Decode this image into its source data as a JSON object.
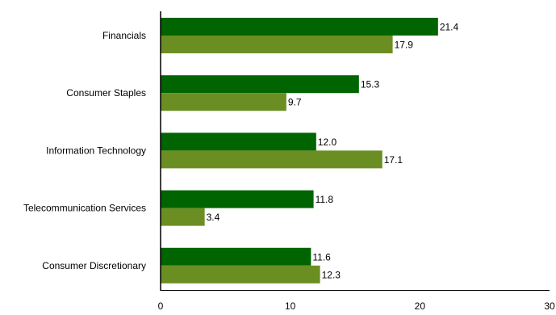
{
  "chart_data": {
    "type": "bar",
    "orientation": "horizontal",
    "categories": [
      "Financials",
      "Consumer Staples",
      "Information Technology",
      "Telecommunication Services",
      "Consumer Discretionary"
    ],
    "series": [
      {
        "color": "#006400",
        "values": [
          21.4,
          15.3,
          12.0,
          11.8,
          11.6
        ]
      },
      {
        "color": "#6b8e23",
        "values": [
          17.9,
          9.7,
          17.1,
          3.4,
          12.3
        ]
      }
    ],
    "value_labels": [
      [
        "21.4",
        "15.3",
        "12.0",
        "11.8",
        "11.6"
      ],
      [
        "17.9",
        "9.7",
        "17.1",
        "3.4",
        "12.3"
      ]
    ],
    "xlim": [
      0,
      30
    ],
    "xticks": [
      "0",
      "10",
      "20",
      "30"
    ],
    "grid": false,
    "legend": "none"
  }
}
